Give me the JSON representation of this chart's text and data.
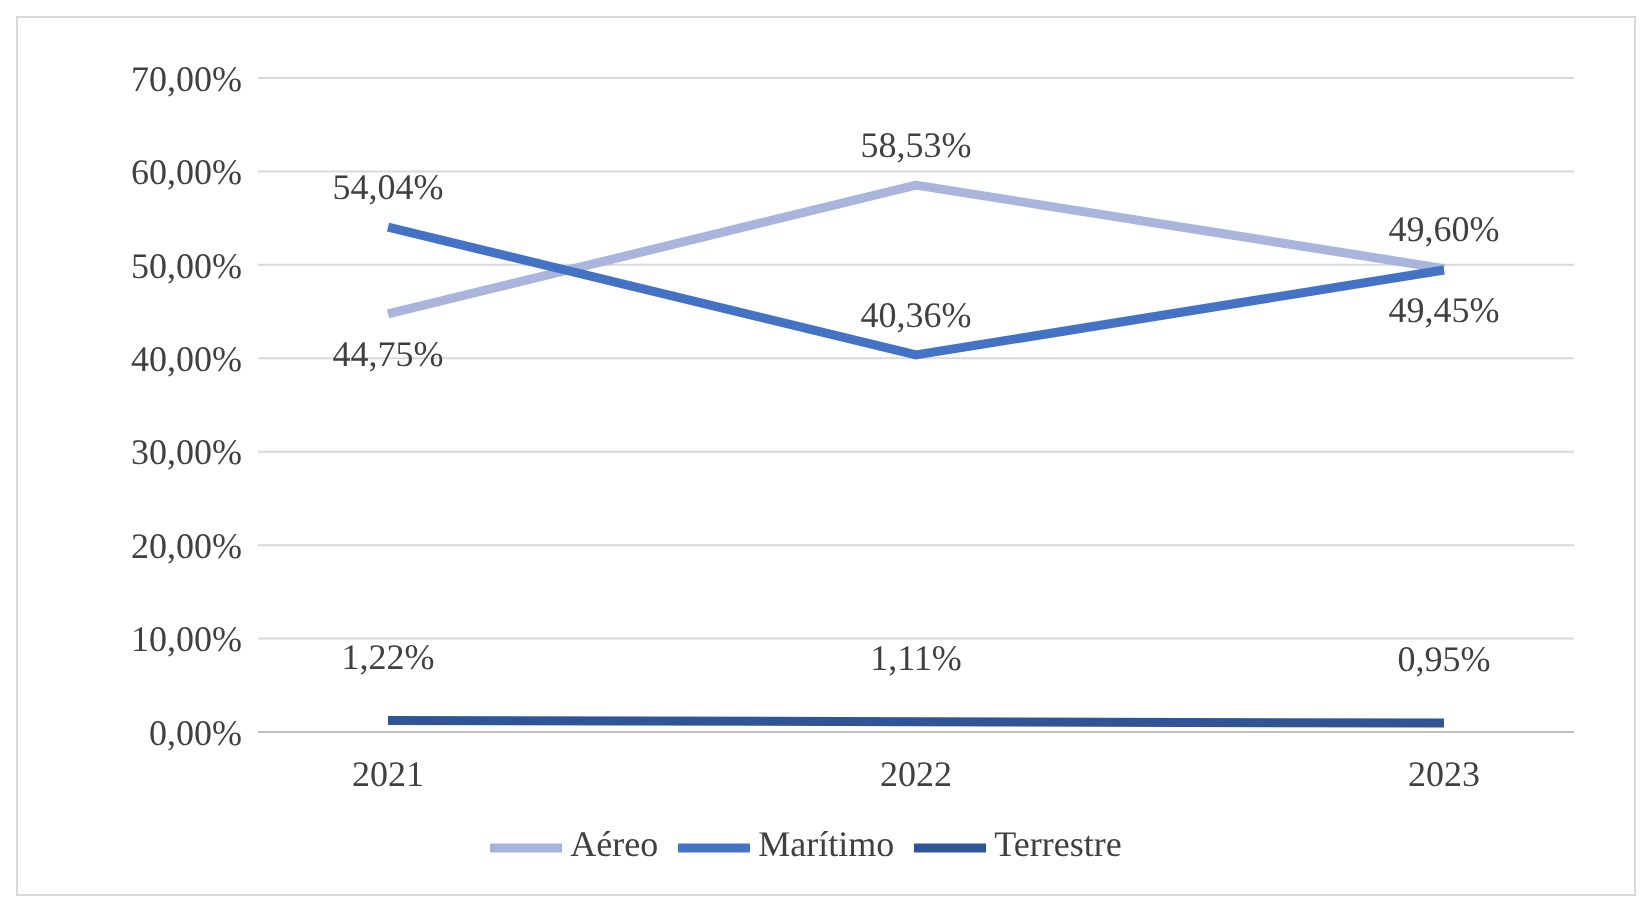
{
  "chart_data": {
    "type": "line",
    "categories": [
      "2021",
      "2022",
      "2023"
    ],
    "series": [
      {
        "name": "Aéreo",
        "color": "#a9b5dd",
        "values": [
          44.75,
          58.53,
          49.6
        ],
        "value_labels": [
          "44,75%",
          "58,53%",
          "49,60%"
        ]
      },
      {
        "name": "Marítimo",
        "color": "#4472c4",
        "values": [
          54.04,
          40.36,
          49.45
        ],
        "value_labels": [
          "54,04%",
          "40,36%",
          "49,45%"
        ]
      },
      {
        "name": "Terrestre",
        "color": "#2f5597",
        "values": [
          1.22,
          1.11,
          0.95
        ],
        "value_labels": [
          "1,22%",
          "1,11%",
          "0,95%"
        ]
      }
    ],
    "ylim": [
      0,
      70
    ],
    "yticks": [
      {
        "value": 0,
        "label": "0,00%"
      },
      {
        "value": 10,
        "label": "10,00%"
      },
      {
        "value": 20,
        "label": "20,00%"
      },
      {
        "value": 30,
        "label": "30,00%"
      },
      {
        "value": 40,
        "label": "40,00%"
      },
      {
        "value": 50,
        "label": "50,00%"
      },
      {
        "value": 60,
        "label": "60,00%"
      },
      {
        "value": 70,
        "label": "70,00%"
      }
    ],
    "grid": "y",
    "legend": "bottom",
    "marker": "none",
    "line_style": "solid"
  }
}
